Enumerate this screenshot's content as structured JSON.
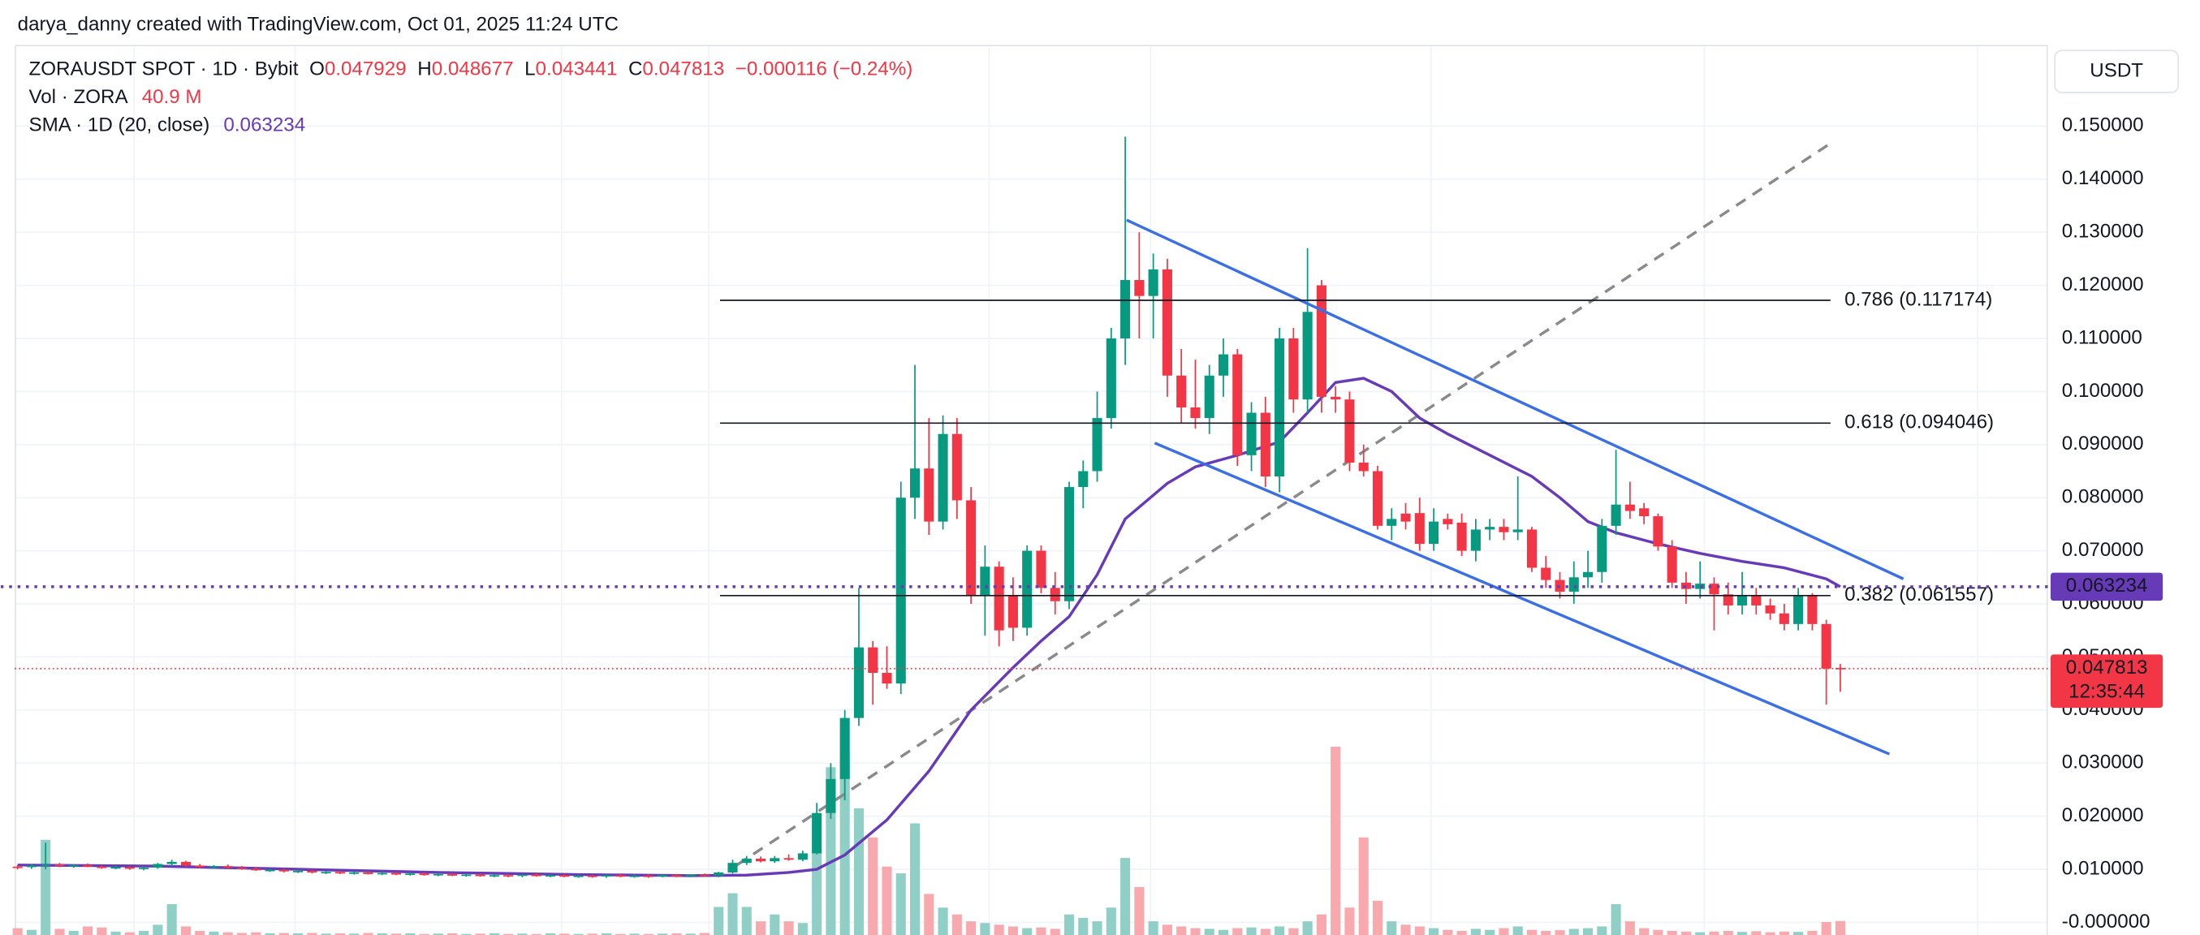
{
  "chart_data": {
    "type": "candlestick",
    "credit": "darya_danny created with TradingView.com, Oct 01, 2025 11:24 UTC",
    "symbol": "ZORAUSDT SPOT · 1D · Bybit",
    "ohlc_letters": [
      "O",
      "H",
      "L",
      "C"
    ],
    "change": "−0.000116 (−0.24%)",
    "volume_title": "Vol · ZORA",
    "last_volume_label": "40.9 M",
    "sma_title": "SMA · 1D (20, close)",
    "currency": "USDT",
    "countdown": "12:35:44",
    "up_color": "#089981",
    "down_color": "#f23645",
    "volume_up_color": "#8fcfc5",
    "volume_down_color": "#f7a9ae",
    "sma_color": "#673ab7",
    "trend_color": "#3b6fe6",
    "fib_color": "#131722",
    "path_color": "#8a8a8a",
    "grid": true,
    "xlim": [
      -0.2,
      144.8
    ],
    "ylim": [
      -0.00238,
      0.1653
    ],
    "volume_lim": [
      0,
      2600
    ],
    "yticks": [
      {
        "value": 0.15,
        "label": "0.150000"
      },
      {
        "value": 0.14,
        "label": "0.140000"
      },
      {
        "value": 0.13,
        "label": "0.130000"
      },
      {
        "value": 0.12,
        "label": "0.120000"
      },
      {
        "value": 0.11,
        "label": "0.110000"
      },
      {
        "value": 0.1,
        "label": "0.100000"
      },
      {
        "value": 0.09,
        "label": "0.090000"
      },
      {
        "value": 0.08,
        "label": "0.080000"
      },
      {
        "value": 0.07,
        "label": "0.070000"
      },
      {
        "value": 0.06,
        "label": "0.060000"
      },
      {
        "value": 0.05,
        "label": "0.050000"
      },
      {
        "value": 0.04,
        "label": "0.040000"
      },
      {
        "value": 0.03,
        "label": "0.030000"
      },
      {
        "value": 0.02,
        "label": "0.020000"
      },
      {
        "value": 0.01,
        "label": "0.010000"
      },
      {
        "value": 0,
        "label": "-0.000000"
      }
    ],
    "candles": [
      [
        0.0105,
        0.0108,
        0.01,
        0.0104
      ],
      [
        0.0104,
        0.011,
        0.0101,
        0.0107
      ],
      [
        0.0107,
        0.015,
        0.01,
        0.0109
      ],
      [
        0.0109,
        0.0112,
        0.0104,
        0.0106
      ],
      [
        0.0106,
        0.011,
        0.0103,
        0.0108
      ],
      [
        0.0108,
        0.0111,
        0.0104,
        0.0105
      ],
      [
        0.0105,
        0.0108,
        0.0101,
        0.0103
      ],
      [
        0.0103,
        0.0107,
        0.01,
        0.0104
      ],
      [
        0.0104,
        0.0106,
        0.0099,
        0.0101
      ],
      [
        0.0101,
        0.0105,
        0.0098,
        0.0103
      ],
      [
        0.0103,
        0.0112,
        0.0101,
        0.011
      ],
      [
        0.011,
        0.0118,
        0.0106,
        0.0114
      ],
      [
        0.0114,
        0.0116,
        0.0105,
        0.0107
      ],
      [
        0.0107,
        0.011,
        0.0102,
        0.0104
      ],
      [
        0.0104,
        0.0108,
        0.0101,
        0.0106
      ],
      [
        0.0106,
        0.0109,
        0.0102,
        0.0103
      ],
      [
        0.0103,
        0.0106,
        0.0099,
        0.0101
      ],
      [
        0.0101,
        0.0104,
        0.0097,
        0.0098
      ],
      [
        0.0098,
        0.0101,
        0.0095,
        0.0099
      ],
      [
        0.0099,
        0.0101,
        0.0094,
        0.0096
      ],
      [
        0.0096,
        0.0099,
        0.0093,
        0.0097
      ],
      [
        0.0097,
        0.0099,
        0.0092,
        0.0094
      ],
      [
        0.0094,
        0.0097,
        0.0091,
        0.0095
      ],
      [
        0.0095,
        0.0097,
        0.0091,
        0.0092
      ],
      [
        0.0092,
        0.0096,
        0.009,
        0.0094
      ],
      [
        0.0094,
        0.0096,
        0.009,
        0.0091
      ],
      [
        0.0091,
        0.0095,
        0.0089,
        0.0093
      ],
      [
        0.0093,
        0.0095,
        0.0089,
        0.009
      ],
      [
        0.009,
        0.0094,
        0.0088,
        0.0092
      ],
      [
        0.0092,
        0.0094,
        0.0088,
        0.0089
      ],
      [
        0.0089,
        0.0093,
        0.0087,
        0.0091
      ],
      [
        0.0091,
        0.0093,
        0.0087,
        0.0088
      ],
      [
        0.0088,
        0.0092,
        0.0086,
        0.009
      ],
      [
        0.009,
        0.0092,
        0.0086,
        0.0087
      ],
      [
        0.0087,
        0.0091,
        0.0085,
        0.0089
      ],
      [
        0.0089,
        0.0091,
        0.0085,
        0.0088
      ],
      [
        0.0088,
        0.0091,
        0.0085,
        0.009
      ],
      [
        0.009,
        0.0092,
        0.0086,
        0.0087
      ],
      [
        0.0087,
        0.009,
        0.0085,
        0.0089
      ],
      [
        0.0089,
        0.0091,
        0.0085,
        0.0086
      ],
      [
        0.0086,
        0.009,
        0.0084,
        0.0088
      ],
      [
        0.0088,
        0.009,
        0.0084,
        0.0087
      ],
      [
        0.0087,
        0.009,
        0.0084,
        0.0089
      ],
      [
        0.0089,
        0.0091,
        0.0085,
        0.0086
      ],
      [
        0.0086,
        0.009,
        0.0084,
        0.0088
      ],
      [
        0.0088,
        0.009,
        0.0084,
        0.0087
      ],
      [
        0.0087,
        0.0091,
        0.0085,
        0.0089
      ],
      [
        0.0089,
        0.0091,
        0.0085,
        0.0087
      ],
      [
        0.0087,
        0.0091,
        0.0085,
        0.009
      ],
      [
        0.009,
        0.0092,
        0.0086,
        0.0088
      ],
      [
        0.0088,
        0.0095,
        0.0085,
        0.0094
      ],
      [
        0.0094,
        0.0118,
        0.0092,
        0.0112
      ],
      [
        0.0112,
        0.0125,
        0.0108,
        0.012
      ],
      [
        0.012,
        0.0124,
        0.0113,
        0.0115
      ],
      [
        0.0115,
        0.0125,
        0.0112,
        0.0121
      ],
      [
        0.0121,
        0.0128,
        0.0116,
        0.0118
      ],
      [
        0.0118,
        0.0135,
        0.0115,
        0.013
      ],
      [
        0.013,
        0.0225,
        0.0128,
        0.0206
      ],
      [
        0.0206,
        0.03,
        0.0195,
        0.027
      ],
      [
        0.027,
        0.04,
        0.023,
        0.0385
      ],
      [
        0.0385,
        0.063,
        0.037,
        0.0518
      ],
      [
        0.0518,
        0.053,
        0.041,
        0.047
      ],
      [
        0.047,
        0.052,
        0.044,
        0.045
      ],
      [
        0.045,
        0.083,
        0.043,
        0.08
      ],
      [
        0.08,
        0.105,
        0.076,
        0.0855
      ],
      [
        0.0855,
        0.095,
        0.073,
        0.0755
      ],
      [
        0.0755,
        0.0955,
        0.074,
        0.092
      ],
      [
        0.092,
        0.095,
        0.076,
        0.0795
      ],
      [
        0.0795,
        0.082,
        0.06,
        0.0615
      ],
      [
        0.0615,
        0.071,
        0.054,
        0.067
      ],
      [
        0.067,
        0.068,
        0.052,
        0.055
      ],
      [
        0.0615,
        0.065,
        0.053,
        0.0555
      ],
      [
        0.0555,
        0.071,
        0.054,
        0.07
      ],
      [
        0.07,
        0.071,
        0.062,
        0.063
      ],
      [
        0.063,
        0.066,
        0.058,
        0.0605
      ],
      [
        0.0605,
        0.083,
        0.059,
        0.082
      ],
      [
        0.082,
        0.087,
        0.078,
        0.085
      ],
      [
        0.085,
        0.1,
        0.083,
        0.095
      ],
      [
        0.095,
        0.112,
        0.093,
        0.11
      ],
      [
        0.11,
        0.148,
        0.105,
        0.121
      ],
      [
        0.121,
        0.13,
        0.11,
        0.118
      ],
      [
        0.118,
        0.126,
        0.11,
        0.123
      ],
      [
        0.123,
        0.125,
        0.099,
        0.103
      ],
      [
        0.103,
        0.108,
        0.094,
        0.097
      ],
      [
        0.097,
        0.106,
        0.093,
        0.095
      ],
      [
        0.095,
        0.105,
        0.092,
        0.103
      ],
      [
        0.103,
        0.11,
        0.099,
        0.107
      ],
      [
        0.107,
        0.108,
        0.086,
        0.088
      ],
      [
        0.088,
        0.098,
        0.085,
        0.096
      ],
      [
        0.096,
        0.099,
        0.082,
        0.084
      ],
      [
        0.084,
        0.112,
        0.081,
        0.11
      ],
      [
        0.11,
        0.112,
        0.096,
        0.0985
      ],
      [
        0.0985,
        0.127,
        0.096,
        0.115
      ],
      [
        0.12,
        0.121,
        0.096,
        0.099
      ],
      [
        0.099,
        0.101,
        0.096,
        0.0985
      ],
      [
        0.0985,
        0.1,
        0.085,
        0.0866
      ],
      [
        0.0866,
        0.09,
        0.084,
        0.085
      ],
      [
        0.085,
        0.086,
        0.074,
        0.0747
      ],
      [
        0.0747,
        0.078,
        0.072,
        0.076
      ],
      [
        0.077,
        0.079,
        0.074,
        0.0755
      ],
      [
        0.0771,
        0.08,
        0.07,
        0.0713
      ],
      [
        0.0713,
        0.078,
        0.07,
        0.0755
      ],
      [
        0.076,
        0.077,
        0.074,
        0.075
      ],
      [
        0.0753,
        0.077,
        0.069,
        0.07
      ],
      [
        0.07,
        0.076,
        0.068,
        0.074
      ],
      [
        0.074,
        0.076,
        0.072,
        0.0745
      ],
      [
        0.0745,
        0.076,
        0.072,
        0.0735
      ],
      [
        0.0735,
        0.084,
        0.072,
        0.074
      ],
      [
        0.074,
        0.0745,
        0.066,
        0.0668
      ],
      [
        0.0668,
        0.069,
        0.063,
        0.0645
      ],
      [
        0.0645,
        0.066,
        0.061,
        0.0623
      ],
      [
        0.0623,
        0.068,
        0.06,
        0.065
      ],
      [
        0.065,
        0.07,
        0.063,
        0.066
      ],
      [
        0.066,
        0.076,
        0.064,
        0.0747
      ],
      [
        0.0747,
        0.089,
        0.073,
        0.0787
      ],
      [
        0.0787,
        0.083,
        0.076,
        0.0775
      ],
      [
        0.078,
        0.079,
        0.075,
        0.0765
      ],
      [
        0.0765,
        0.077,
        0.07,
        0.0708
      ],
      [
        0.0708,
        0.072,
        0.063,
        0.064
      ],
      [
        0.064,
        0.066,
        0.06,
        0.0628
      ],
      [
        0.0628,
        0.068,
        0.061,
        0.0638
      ],
      [
        0.0638,
        0.065,
        0.055,
        0.0618
      ],
      [
        0.0618,
        0.064,
        0.058,
        0.0597
      ],
      [
        0.0597,
        0.066,
        0.058,
        0.0615
      ],
      [
        0.0615,
        0.063,
        0.058,
        0.0597
      ],
      [
        0.0597,
        0.061,
        0.057,
        0.0582
      ],
      [
        0.0582,
        0.06,
        0.055,
        0.0562
      ],
      [
        0.0562,
        0.063,
        0.055,
        0.0615
      ],
      [
        0.0615,
        0.062,
        0.055,
        0.0562
      ],
      [
        0.0562,
        0.057,
        0.041,
        0.0478
      ],
      [
        0.047929,
        0.048677,
        0.043441,
        0.047813
      ]
    ],
    "volume": [
      20,
      15,
      278,
      18,
      12,
      25,
      22,
      10,
      8,
      12,
      30,
      90,
      25,
      12,
      10,
      8,
      6,
      8,
      5,
      6,
      5,
      6,
      4,
      5,
      4,
      6,
      5,
      4,
      5,
      3,
      4,
      5,
      3,
      4,
      5,
      3,
      4,
      3,
      5,
      4,
      3,
      4,
      5,
      3,
      4,
      3,
      4,
      5,
      4,
      6,
      82,
      122,
      82,
      40,
      60,
      40,
      35,
      245,
      490,
      530,
      370,
      285,
      200,
      180,
      326,
      120,
      80,
      60,
      40,
      35,
      30,
      25,
      20,
      22,
      18,
      60,
      50,
      40,
      80,
      225,
      140,
      40,
      30,
      25,
      20,
      18,
      15,
      20,
      22,
      18,
      25,
      20,
      40,
      60,
      550,
      80,
      285,
      100,
      40,
      30,
      25,
      20,
      15,
      12,
      18,
      15,
      20,
      25,
      15,
      12,
      14,
      18,
      20,
      25,
      90,
      40,
      20,
      15,
      12,
      10,
      8,
      10,
      12,
      9,
      11,
      8,
      10,
      9,
      12,
      38,
      40.9
    ],
    "sma": {
      "x": [
        0,
        10,
        20,
        30,
        40,
        48,
        52,
        55,
        57,
        59,
        62,
        65,
        68,
        71,
        73,
        75,
        77,
        79,
        82,
        84,
        87,
        90,
        92,
        94,
        96,
        98,
        100,
        102,
        105,
        108,
        110,
        112,
        114,
        117,
        120,
        123,
        126,
        129,
        130
      ],
      "values": [
        0.0108,
        0.0106,
        0.01,
        0.0094,
        0.009,
        0.0088,
        0.0089,
        0.0094,
        0.01,
        0.0127,
        0.0193,
        0.0285,
        0.04,
        0.048,
        0.053,
        0.0576,
        0.0655,
        0.076,
        0.0827,
        0.0858,
        0.088,
        0.0905,
        0.096,
        0.1017,
        0.1025,
        0.1,
        0.095,
        0.092,
        0.088,
        0.084,
        0.08,
        0.0755,
        0.0734,
        0.0713,
        0.0695,
        0.068,
        0.0668,
        0.0647,
        0.063234
      ]
    },
    "trend_lines": [
      {
        "x": [
          79.1,
          134.5
        ],
        "values": [
          0.1323,
          0.0647
        ]
      },
      {
        "x": [
          81.1,
          133.5
        ],
        "values": [
          0.0903,
          0.0317
        ]
      }
    ],
    "path_line": {
      "x": [
        51.3,
        129.5
      ],
      "values": [
        0.0108,
        0.1471
      ]
    },
    "fib_x": [
      50.1,
      129.3
    ],
    "fib_levels": [
      {
        "value": 0.117174,
        "label": "0.786 (0.117174)"
      },
      {
        "value": 0.094046,
        "label": "0.618 (0.094046)"
      },
      {
        "value": 0.061557,
        "label": "0.382 (0.061557)"
      }
    ]
  }
}
